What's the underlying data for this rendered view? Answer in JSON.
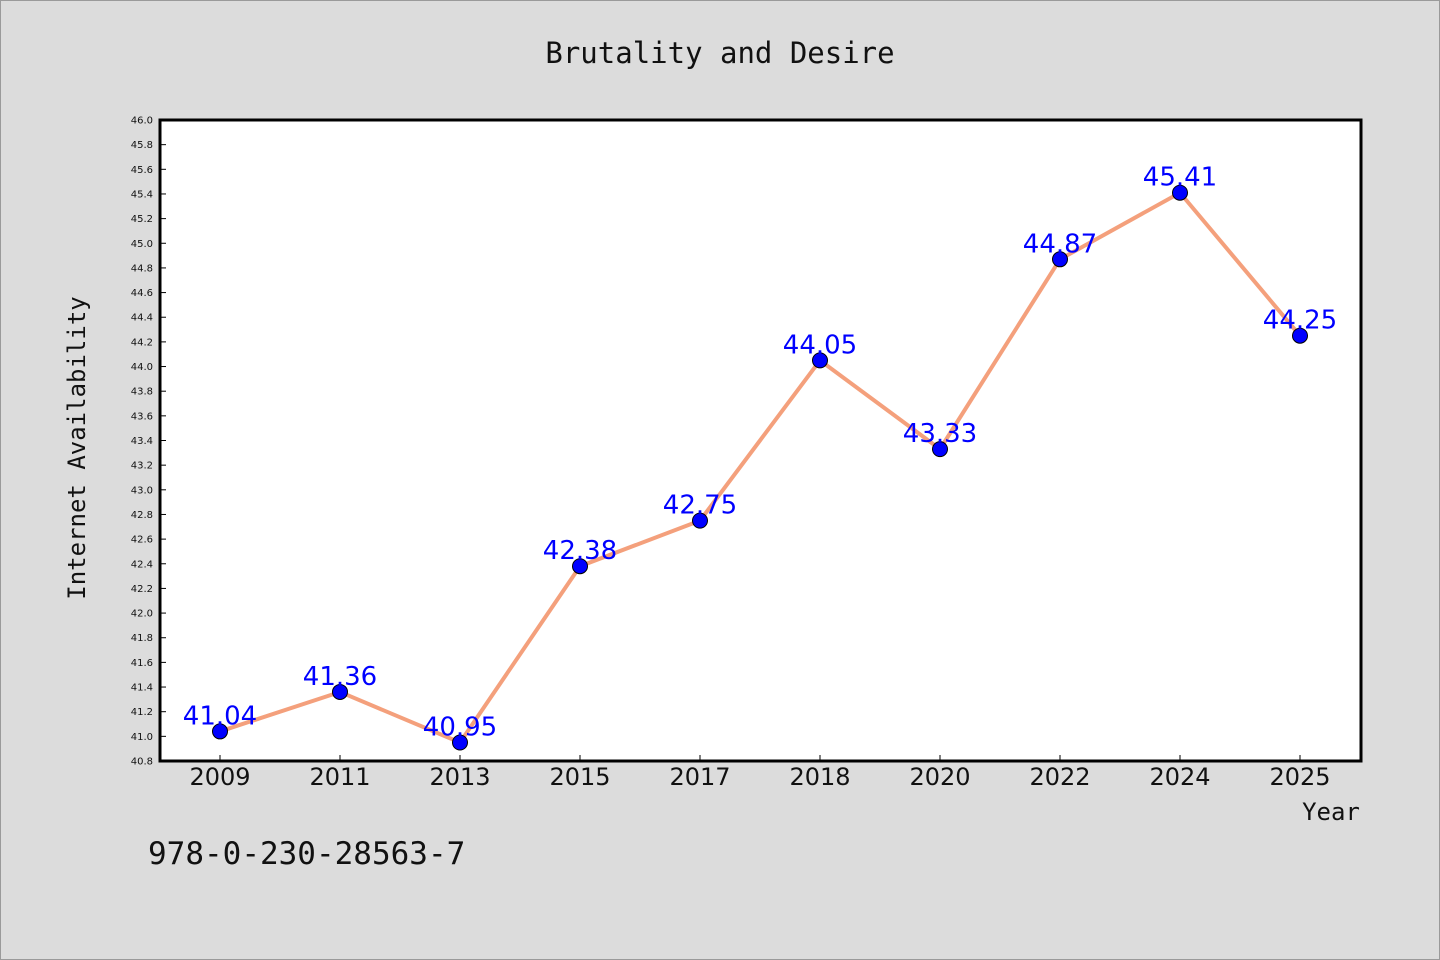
{
  "chart_data": {
    "type": "line",
    "title": "Brutality and Desire",
    "xlabel": "Year",
    "ylabel": "Internet Availability",
    "categories": [
      "2009",
      "2011",
      "2013",
      "2015",
      "2017",
      "2018",
      "2020",
      "2022",
      "2024",
      "2025"
    ],
    "series": [
      {
        "values": [
          41.04,
          41.36,
          40.95,
          42.38,
          42.75,
          44.05,
          43.33,
          44.87,
          45.41,
          44.25
        ],
        "labels": [
          "41.04",
          "41.36",
          "40.95",
          "42.38",
          "42.75",
          "44.05",
          "43.33",
          "44.87",
          "45.41",
          "44.25"
        ],
        "line_color": "#f4a07c",
        "marker_color": "#0000ff"
      }
    ],
    "yticks": [
      "40.8",
      "41.0",
      "41.2",
      "41.4",
      "41.6",
      "41.8",
      "42.0",
      "42.2",
      "42.4",
      "42.6",
      "42.8",
      "43.0",
      "43.2",
      "43.4",
      "43.6",
      "43.8",
      "44.0",
      "44.2",
      "44.4",
      "44.6",
      "44.8",
      "45.0",
      "45.2",
      "45.4",
      "45.6",
      "45.8",
      "46.0"
    ],
    "ylim": [
      40.8,
      46.0
    ],
    "grid": false,
    "legend": "none"
  },
  "annotation": {
    "isbn": "978-0-230-28563-7"
  },
  "colors": {
    "background": "#dcdcdc",
    "plot_background": "#ffffff",
    "line": "#f4a07c",
    "marker": "#0000ff",
    "label": "#0000ff"
  }
}
